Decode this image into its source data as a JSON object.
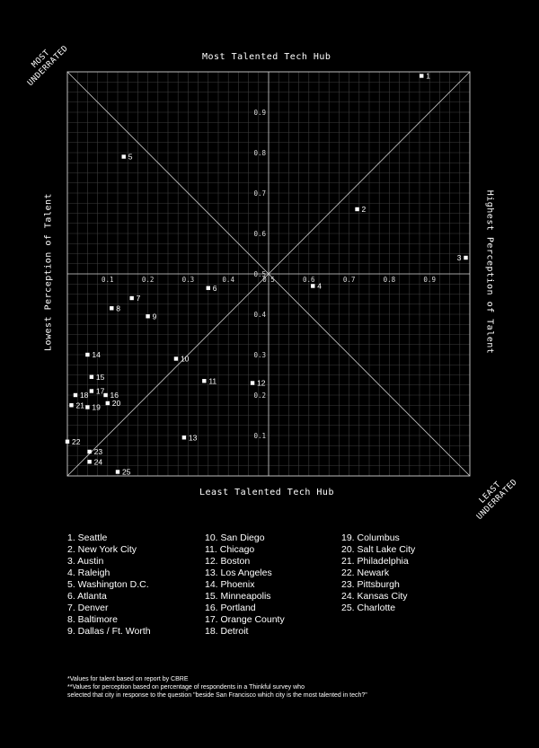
{
  "labels": {
    "top": "Most Talented Tech Hub",
    "bottom": "Least Talented Tech Hub",
    "left": "Lowest Perception of Talent",
    "right": "Highest Perception of Talent",
    "corner_tl_1": "MOST",
    "corner_tl_2": "UNDERRATED",
    "corner_br_1": "LEAST",
    "corner_br_2": "UNDERRATED"
  },
  "chart_data": {
    "type": "scatter",
    "x_ticks": [
      "0.1",
      "0.2",
      "0.3",
      "0.4",
      "0.5",
      "0.6",
      "0.7",
      "0.8",
      "0.9"
    ],
    "y_ticks": [
      "0.9",
      "0.8",
      "0.7",
      "0.6",
      "0.5",
      "0.4",
      "0.3",
      "0.2",
      "0.1"
    ],
    "xlim": [
      0,
      1
    ],
    "ylim": [
      0,
      1
    ],
    "grid": true,
    "points": [
      {
        "label": "1",
        "x": 0.88,
        "y": 0.99
      },
      {
        "label": "2",
        "x": 0.72,
        "y": 0.66
      },
      {
        "label": "3",
        "x": 0.99,
        "y": 0.54
      },
      {
        "label": "4",
        "x": 0.61,
        "y": 0.47
      },
      {
        "label": "5",
        "x": 0.14,
        "y": 0.79
      },
      {
        "label": "6",
        "x": 0.35,
        "y": 0.465
      },
      {
        "label": "7",
        "x": 0.16,
        "y": 0.44
      },
      {
        "label": "8",
        "x": 0.11,
        "y": 0.415
      },
      {
        "label": "9",
        "x": 0.2,
        "y": 0.395
      },
      {
        "label": "10",
        "x": 0.27,
        "y": 0.29
      },
      {
        "label": "11",
        "x": 0.34,
        "y": 0.235
      },
      {
        "label": "12",
        "x": 0.46,
        "y": 0.23
      },
      {
        "label": "13",
        "x": 0.29,
        "y": 0.095
      },
      {
        "label": "14",
        "x": 0.05,
        "y": 0.3
      },
      {
        "label": "15",
        "x": 0.06,
        "y": 0.245
      },
      {
        "label": "16",
        "x": 0.095,
        "y": 0.2
      },
      {
        "label": "17",
        "x": 0.06,
        "y": 0.21
      },
      {
        "label": "18",
        "x": 0.02,
        "y": 0.2
      },
      {
        "label": "19",
        "x": 0.05,
        "y": 0.17
      },
      {
        "label": "20",
        "x": 0.1,
        "y": 0.18
      },
      {
        "label": "21",
        "x": 0.01,
        "y": 0.175
      },
      {
        "label": "22",
        "x": 0.0,
        "y": 0.085
      },
      {
        "label": "23",
        "x": 0.055,
        "y": 0.06
      },
      {
        "label": "24",
        "x": 0.055,
        "y": 0.035
      },
      {
        "label": "25",
        "x": 0.125,
        "y": 0.01
      }
    ]
  },
  "legend": [
    [
      "1. Seattle",
      "2. New York City",
      "3. Austin",
      "4. Raleigh",
      "5. Washington D.C.",
      "6. Atlanta",
      "7. Denver",
      "8. Baltimore",
      "9. Dallas / Ft. Worth"
    ],
    [
      "10. San Diego",
      "11. Chicago",
      "12. Boston",
      "13. Los Angeles",
      "14. Phoenix",
      "15. Minneapolis",
      "16. Portland",
      "17. Orange County",
      "18. Detroit"
    ],
    [
      "19. Columbus",
      "20. Salt Lake City",
      "21. Philadelphia",
      "22. Newark",
      "23. Pittsburgh",
      "24. Kansas City",
      "25. Charlotte"
    ]
  ],
  "footnotes": [
    "*Values for talent based on report by CBRE",
    "**Values for perception based on percentage of respondents in a Thinkful survey who",
    "selected that city in response to the question \"beside San Francisco which city is the most talented in tech?\""
  ]
}
